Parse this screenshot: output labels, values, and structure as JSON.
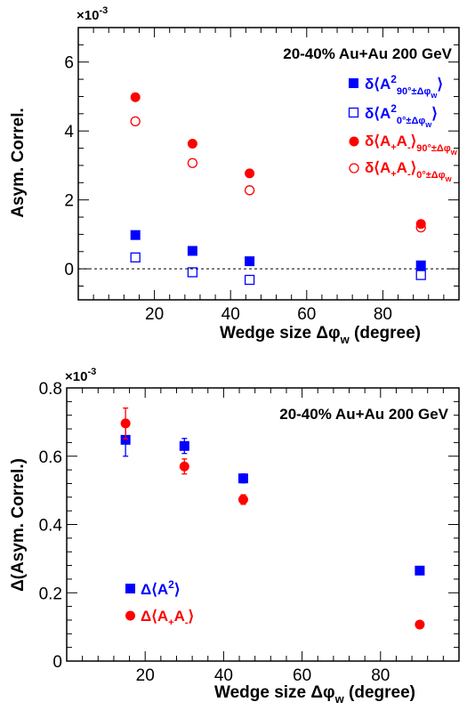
{
  "chart_data": [
    {
      "type": "scatter",
      "title": "20-40% Au+Au 200 GeV",
      "xlabel": "Wedge size Δφ_w (degree)",
      "ylabel": "Asym. Correl.",
      "y_multiplier": "×10^-3",
      "xlim": [
        0,
        100
      ],
      "ylim": [
        -0.9,
        7.0
      ],
      "xticks": [
        20,
        40,
        60,
        80
      ],
      "yticks": [
        0,
        2,
        4,
        6
      ],
      "zero_line": true,
      "series": [
        {
          "name": "δ⟨A²_90°±Δφw⟩",
          "color": "#0000ff",
          "marker": "filled-square",
          "x": [
            15,
            30,
            45,
            90
          ],
          "y": [
            0.98,
            0.52,
            0.22,
            0.1
          ]
        },
        {
          "name": "δ⟨A²_0°±Δφw⟩",
          "color": "#0000ff",
          "marker": "open-square",
          "x": [
            15,
            30,
            45,
            90
          ],
          "y": [
            0.33,
            -0.1,
            -0.32,
            -0.18
          ]
        },
        {
          "name": "δ⟨A+A-⟩_90°±Δφw",
          "color": "#ff0000",
          "marker": "filled-circle",
          "x": [
            15,
            30,
            45,
            90
          ],
          "y": [
            4.98,
            3.63,
            2.77,
            1.3
          ]
        },
        {
          "name": "δ⟨A+A-⟩_0°±Δφw",
          "color": "#ff0000",
          "marker": "open-circle",
          "x": [
            15,
            30,
            45,
            90
          ],
          "y": [
            4.28,
            3.07,
            2.28,
            1.2
          ]
        }
      ]
    },
    {
      "type": "scatter",
      "title": "20-40% Au+Au 200 GeV",
      "xlabel": "Wedge size Δφ_w (degree)",
      "ylabel": "Δ(Asym. Correl.)",
      "y_multiplier": "×10^-3",
      "xlim": [
        0,
        100
      ],
      "ylim": [
        0,
        0.8
      ],
      "xticks": [
        20,
        40,
        60,
        80
      ],
      "yticks": [
        0,
        0.2,
        0.4,
        0.6,
        0.8
      ],
      "series": [
        {
          "name": "Δ⟨A²⟩",
          "color": "#0000ff",
          "marker": "filled-square",
          "x": [
            15,
            30,
            45,
            90
          ],
          "y": [
            0.648,
            0.63,
            0.535,
            0.265
          ],
          "err": [
            0.048,
            0.022,
            0.013,
            0.006
          ]
        },
        {
          "name": "Δ⟨A+A-⟩",
          "color": "#ff0000",
          "marker": "filled-circle",
          "x": [
            15,
            30,
            45,
            90
          ],
          "y": [
            0.696,
            0.57,
            0.473,
            0.107
          ],
          "err": [
            0.045,
            0.022,
            0.014,
            0.005
          ]
        }
      ]
    }
  ]
}
